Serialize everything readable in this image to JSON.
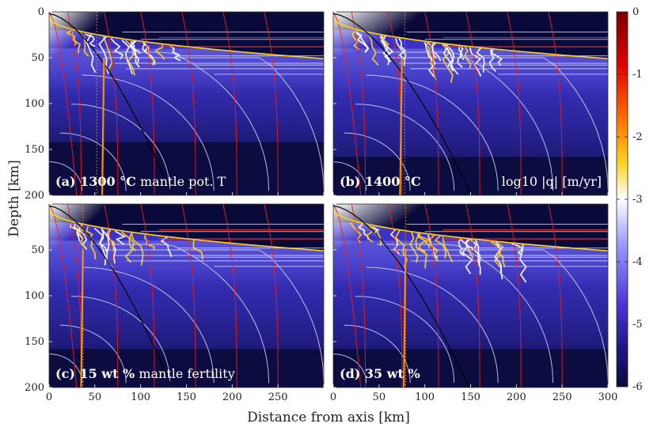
{
  "chart_data": {
    "type": "heatmap",
    "title": "",
    "xlabel": "Distance from axis [km]",
    "ylabel": "Depth [km]",
    "xlim": [
      0,
      300
    ],
    "ylim": [
      200,
      0
    ],
    "x_ticks": [
      0,
      50,
      100,
      150,
      200,
      250,
      300
    ],
    "x_tick_labels": [
      "0",
      "50",
      "100",
      "150",
      "200",
      "250",
      "300"
    ],
    "y_ticks": [
      0,
      50,
      100,
      150,
      200
    ],
    "y_tick_labels": [
      "0",
      "50",
      "100",
      "150",
      "200"
    ],
    "colorbar": {
      "label": "log10 |q| [m/yr]",
      "range": [
        -6,
        0
      ],
      "ticks": [
        0,
        -1,
        -2,
        -3,
        -4,
        -5,
        -6
      ],
      "tick_labels": [
        "0",
        "-1",
        "-2",
        "-3",
        "-4",
        "-5",
        "-6"
      ],
      "colormap": [
        "#0a0a3c",
        "#3a2ec8",
        "#6a6af0",
        "#ffffff",
        "#ffd21e",
        "#ff2a00",
        "#7a0000"
      ]
    },
    "panels": [
      {
        "id": "a",
        "label_prefix": "(a)",
        "label_bold": "1300 °C",
        "label_rest": " mantle pot. T",
        "dotted_line_x": 52,
        "orange_channel_x": 60,
        "thermal_boundary_depth": 142,
        "black_curve_end_x": 133
      },
      {
        "id": "b",
        "label_prefix": "(b)",
        "label_bold": "1400 °C",
        "label_rest": "",
        "dotted_line_x": 78,
        "orange_channel_x": 75,
        "thermal_boundary_depth": 158,
        "black_curve_end_x": 150,
        "annotation": "log10 |q| [m/yr]"
      },
      {
        "id": "c",
        "label_prefix": "(c)",
        "label_bold": "15 wt %",
        "label_rest": " mantle fertility",
        "dotted_line_x": 37,
        "orange_channel_x": 37,
        "thermal_boundary_depth": 158,
        "black_curve_end_x": 133
      },
      {
        "id": "d",
        "label_prefix": "(d)",
        "label_bold": "35 wt %",
        "label_rest": "",
        "dotted_line_x": 79,
        "orange_channel_x": 79,
        "thermal_boundary_depth": 158,
        "black_curve_end_x": 147
      }
    ]
  }
}
